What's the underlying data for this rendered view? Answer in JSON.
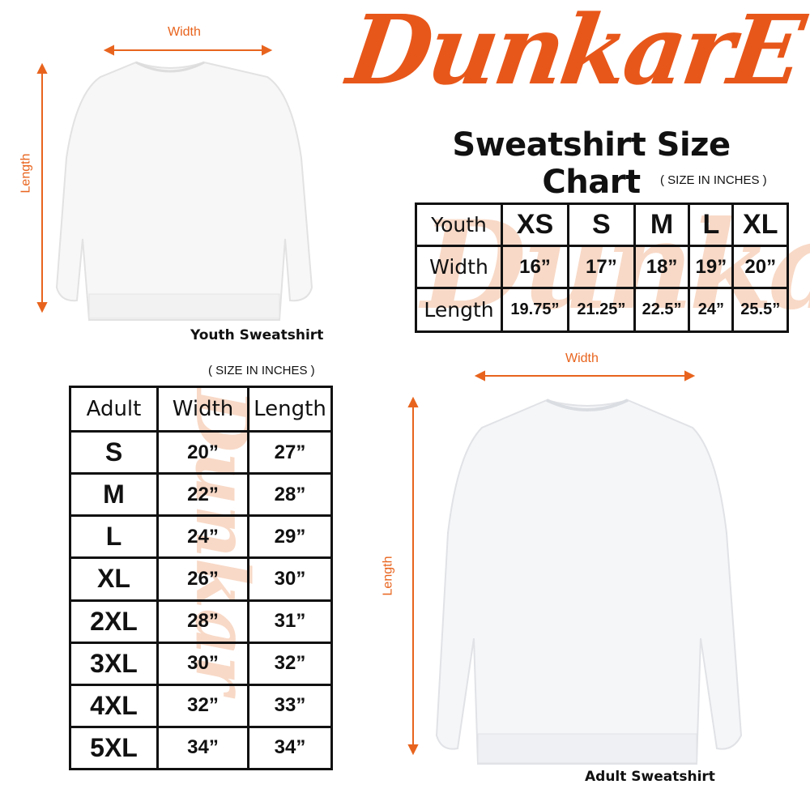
{
  "brand": {
    "logo_text": "DunkarE",
    "color": "#e8571a"
  },
  "title": "Sweatshirt Size Chart",
  "youth": {
    "measure_labels": {
      "width": "Width",
      "length": "Length"
    },
    "caption": "Youth Sweatshirt",
    "unit_note": "( SIZE IN INCHES )",
    "header": [
      "Youth",
      "XS",
      "S",
      "M",
      "L",
      "XL"
    ],
    "rows": [
      [
        "Width",
        "16”",
        "17”",
        "18”",
        "19”",
        "20”"
      ],
      [
        "Length",
        "19.75”",
        "21.25”",
        "22.5”",
        "24”",
        "25.5”"
      ]
    ]
  },
  "adult": {
    "measure_labels": {
      "width": "Width",
      "length": "Length"
    },
    "caption": "Adult Sweatshirt",
    "unit_note": "( SIZE IN INCHES )",
    "header": [
      "Adult",
      "Width",
      "Length"
    ],
    "rows": [
      [
        "S",
        "20”",
        "27”"
      ],
      [
        "M",
        "22”",
        "28”"
      ],
      [
        "L",
        "24”",
        "29”"
      ],
      [
        "XL",
        "26”",
        "30”"
      ],
      [
        "2XL",
        "28”",
        "31”"
      ],
      [
        "3XL",
        "30”",
        "32”"
      ],
      [
        "4XL",
        "32”",
        "33”"
      ],
      [
        "5XL",
        "34”",
        "34”"
      ]
    ]
  }
}
